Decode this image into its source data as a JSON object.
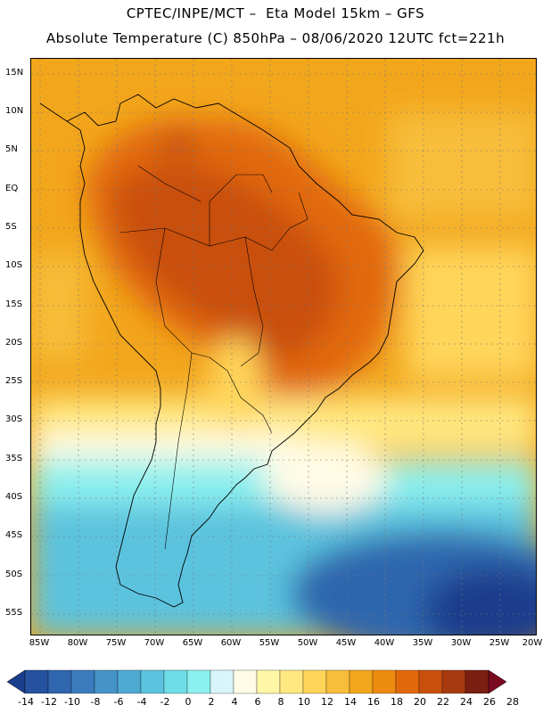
{
  "header": {
    "line1": "CPTEC/INPE/MCT –  Eta Model 15km – GFS",
    "line2": "Absolute Temperature (C) 850hPa – 08/06/2020 12UTC fct=221h"
  },
  "map": {
    "lat_labels": [
      "15N",
      "10N",
      "5N",
      "EQ",
      "5S",
      "10S",
      "15S",
      "20S",
      "25S",
      "30S",
      "35S",
      "40S",
      "45S",
      "50S",
      "55S"
    ],
    "lon_labels": [
      "85W",
      "80W",
      "75W",
      "70W",
      "65W",
      "60W",
      "55W",
      "50W",
      "45W",
      "40W",
      "35W",
      "30W",
      "25W",
      "20W"
    ]
  },
  "colorbar": {
    "labels": [
      "-14",
      "-12",
      "-10",
      "-8",
      "-6",
      "-4",
      "-2",
      "0",
      "2",
      "4",
      "6",
      "8",
      "10",
      "12",
      "14",
      "16",
      "18",
      "20",
      "22",
      "24",
      "26",
      "28"
    ],
    "colors": [
      "#1a3d8c",
      "#24529e",
      "#2f66ae",
      "#3a7cbd",
      "#4593c8",
      "#4ea9d3",
      "#5cc3de",
      "#6fdde8",
      "#8cf0ee",
      "#d8f6fa",
      "#fffbe6",
      "#fff6a6",
      "#ffe880",
      "#ffd55a",
      "#f8bd3a",
      "#f2a61c",
      "#ed8a10",
      "#e2690a",
      "#c9500c",
      "#a83a10",
      "#7a1f12",
      "#7a0a20"
    ]
  }
}
